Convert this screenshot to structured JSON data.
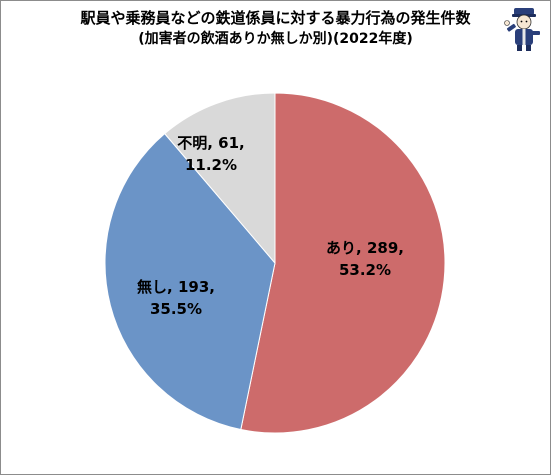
{
  "chart_data": {
    "type": "pie",
    "title": "駅員や乗務員などの鉄道係員に対する暴力行為の発生件数",
    "subtitle": "(加害者の飲酒ありか無しか別)(2022年度)",
    "slices": [
      {
        "label": "あり",
        "value": 289,
        "percent": "53.2%",
        "color": "#cd6b6b"
      },
      {
        "label": "無し",
        "value": 193,
        "percent": "35.5%",
        "color": "#6b94c7"
      },
      {
        "label": "不明",
        "value": 61,
        "percent": "11.2%",
        "color": "#d9d9d9"
      }
    ],
    "start_angle_deg": 0,
    "direction": "clockwise",
    "legend": "none"
  }
}
